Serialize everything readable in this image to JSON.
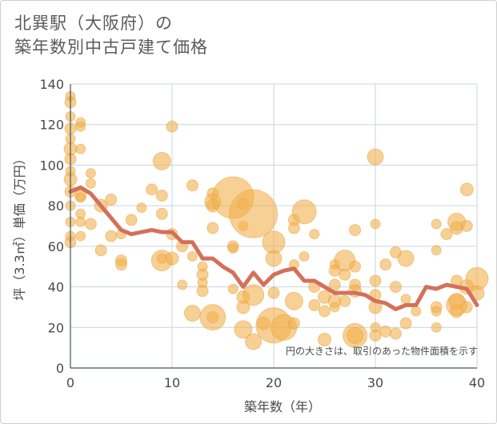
{
  "title": {
    "line1": "北巽駅（大阪府）の",
    "line2": "築年数別中古戸建て価格"
  },
  "note": "円の大きさは、取引のあった物件面積を示す",
  "colors": {
    "bubble": "#f2b04e",
    "bubble_stroke": "#e9a23a",
    "line": "#d4705a",
    "grid": "#c8d6e2",
    "axis": "#3d5566"
  },
  "chart_data": {
    "type": "scatter",
    "xlabel": "築年数（年）",
    "ylabel": "坪（3.3㎡）単価（万円）",
    "xlim": [
      0,
      40
    ],
    "ylim": [
      0,
      140
    ],
    "x_ticks": [
      0,
      10,
      20,
      30,
      40
    ],
    "y_ticks": [
      0,
      20,
      40,
      60,
      80,
      100,
      120,
      140
    ],
    "grid": true,
    "bubbles": [
      {
        "x": 0,
        "y": 134,
        "s": 6
      },
      {
        "x": 0,
        "y": 131,
        "s": 7
      },
      {
        "x": 0,
        "y": 124,
        "s": 6
      },
      {
        "x": 0,
        "y": 118,
        "s": 7
      },
      {
        "x": 0,
        "y": 113,
        "s": 6
      },
      {
        "x": 0,
        "y": 108,
        "s": 8
      },
      {
        "x": 0,
        "y": 103,
        "s": 7
      },
      {
        "x": 0,
        "y": 97,
        "s": 6
      },
      {
        "x": 0,
        "y": 93,
        "s": 8
      },
      {
        "x": 0,
        "y": 87,
        "s": 7
      },
      {
        "x": 0,
        "y": 80,
        "s": 6
      },
      {
        "x": 0,
        "y": 72,
        "s": 6
      },
      {
        "x": 0,
        "y": 65,
        "s": 6
      },
      {
        "x": 0,
        "y": 62,
        "s": 7
      },
      {
        "x": 1,
        "y": 121,
        "s": 6
      },
      {
        "x": 1,
        "y": 119,
        "s": 6
      },
      {
        "x": 1,
        "y": 108,
        "s": 6
      },
      {
        "x": 1,
        "y": 85,
        "s": 7
      },
      {
        "x": 1,
        "y": 84,
        "s": 6
      },
      {
        "x": 1,
        "y": 76,
        "s": 6
      },
      {
        "x": 1,
        "y": 72,
        "s": 6
      },
      {
        "x": 1,
        "y": 65,
        "s": 6
      },
      {
        "x": 2,
        "y": 96,
        "s": 6
      },
      {
        "x": 2,
        "y": 91,
        "s": 6
      },
      {
        "x": 2,
        "y": 71,
        "s": 7
      },
      {
        "x": 3,
        "y": 80,
        "s": 8
      },
      {
        "x": 3,
        "y": 58,
        "s": 7
      },
      {
        "x": 4,
        "y": 83,
        "s": 7
      },
      {
        "x": 4,
        "y": 65,
        "s": 7
      },
      {
        "x": 5,
        "y": 53,
        "s": 7
      },
      {
        "x": 5,
        "y": 51,
        "s": 7
      },
      {
        "x": 5,
        "y": 66,
        "s": 6
      },
      {
        "x": 6,
        "y": 73,
        "s": 7
      },
      {
        "x": 7,
        "y": 79,
        "s": 6
      },
      {
        "x": 8,
        "y": 88,
        "s": 7
      },
      {
        "x": 9,
        "y": 102,
        "s": 11
      },
      {
        "x": 9,
        "y": 85,
        "s": 7
      },
      {
        "x": 9,
        "y": 76,
        "s": 7
      },
      {
        "x": 9,
        "y": 53,
        "s": 13
      },
      {
        "x": 9,
        "y": 54,
        "s": 6
      },
      {
        "x": 10,
        "y": 119,
        "s": 7
      },
      {
        "x": 10,
        "y": 54,
        "s": 8
      },
      {
        "x": 10,
        "y": 66,
        "s": 7
      },
      {
        "x": 11,
        "y": 60,
        "s": 7
      },
      {
        "x": 11,
        "y": 41,
        "s": 6
      },
      {
        "x": 12,
        "y": 90,
        "s": 7
      },
      {
        "x": 12,
        "y": 27,
        "s": 10
      },
      {
        "x": 12,
        "y": 55,
        "s": 6
      },
      {
        "x": 13,
        "y": 50,
        "s": 6
      },
      {
        "x": 13,
        "y": 46,
        "s": 7
      },
      {
        "x": 13,
        "y": 42,
        "s": 6
      },
      {
        "x": 13,
        "y": 38,
        "s": 7
      },
      {
        "x": 14,
        "y": 86,
        "s": 7
      },
      {
        "x": 14,
        "y": 82,
        "s": 10
      },
      {
        "x": 14,
        "y": 80,
        "s": 8
      },
      {
        "x": 14,
        "y": 69,
        "s": 7
      },
      {
        "x": 14,
        "y": 25,
        "s": 16
      },
      {
        "x": 14,
        "y": 25,
        "s": 7
      },
      {
        "x": 16,
        "y": 84,
        "s": 26
      },
      {
        "x": 16,
        "y": 60,
        "s": 7
      },
      {
        "x": 16,
        "y": 59,
        "s": 6
      },
      {
        "x": 16,
        "y": 39,
        "s": 6
      },
      {
        "x": 17,
        "y": 81,
        "s": 7
      },
      {
        "x": 17,
        "y": 70,
        "s": 6
      },
      {
        "x": 17,
        "y": 35,
        "s": 8
      },
      {
        "x": 17,
        "y": 30,
        "s": 8
      },
      {
        "x": 17,
        "y": 19,
        "s": 11
      },
      {
        "x": 18,
        "y": 76,
        "s": 30
      },
      {
        "x": 18,
        "y": 36,
        "s": 13
      },
      {
        "x": 18,
        "y": 13,
        "s": 10
      },
      {
        "x": 19,
        "y": 22,
        "s": 8
      },
      {
        "x": 20,
        "y": 62,
        "s": 14
      },
      {
        "x": 20,
        "y": 54,
        "s": 10
      },
      {
        "x": 20,
        "y": 37,
        "s": 7
      },
      {
        "x": 20,
        "y": 21,
        "s": 22
      },
      {
        "x": 21,
        "y": 20,
        "s": 16
      },
      {
        "x": 22,
        "y": 73,
        "s": 7
      },
      {
        "x": 22,
        "y": 69,
        "s": 7
      },
      {
        "x": 22,
        "y": 51,
        "s": 6
      },
      {
        "x": 22,
        "y": 33,
        "s": 11
      },
      {
        "x": 22,
        "y": 22,
        "s": 7
      },
      {
        "x": 23,
        "y": 77,
        "s": 15
      },
      {
        "x": 23,
        "y": 55,
        "s": 6
      },
      {
        "x": 24,
        "y": 66,
        "s": 6
      },
      {
        "x": 24,
        "y": 40,
        "s": 7
      },
      {
        "x": 24,
        "y": 31,
        "s": 7
      },
      {
        "x": 25,
        "y": 35,
        "s": 8
      },
      {
        "x": 25,
        "y": 14,
        "s": 8
      },
      {
        "x": 25,
        "y": 28,
        "s": 7
      },
      {
        "x": 26,
        "y": 51,
        "s": 6
      },
      {
        "x": 26,
        "y": 48,
        "s": 7
      },
      {
        "x": 26,
        "y": 41,
        "s": 7
      },
      {
        "x": 26,
        "y": 33,
        "s": 8
      },
      {
        "x": 26,
        "y": 30,
        "s": 6
      },
      {
        "x": 27,
        "y": 53,
        "s": 13
      },
      {
        "x": 27,
        "y": 46,
        "s": 7
      },
      {
        "x": 27,
        "y": 33,
        "s": 7
      },
      {
        "x": 28,
        "y": 68,
        "s": 7
      },
      {
        "x": 28,
        "y": 50,
        "s": 7
      },
      {
        "x": 28,
        "y": 41,
        "s": 7
      },
      {
        "x": 28,
        "y": 38,
        "s": 8
      },
      {
        "x": 28,
        "y": 16,
        "s": 15
      },
      {
        "x": 28,
        "y": 16,
        "s": 10
      },
      {
        "x": 30,
        "y": 104,
        "s": 10
      },
      {
        "x": 30,
        "y": 71,
        "s": 6
      },
      {
        "x": 30,
        "y": 43,
        "s": 7
      },
      {
        "x": 30,
        "y": 36,
        "s": 7
      },
      {
        "x": 30,
        "y": 30,
        "s": 8
      },
      {
        "x": 30,
        "y": 20,
        "s": 6
      },
      {
        "x": 30,
        "y": 16,
        "s": 7
      },
      {
        "x": 31,
        "y": 51,
        "s": 7
      },
      {
        "x": 31,
        "y": 18,
        "s": 7
      },
      {
        "x": 32,
        "y": 57,
        "s": 7
      },
      {
        "x": 32,
        "y": 40,
        "s": 7
      },
      {
        "x": 32,
        "y": 17,
        "s": 7
      },
      {
        "x": 33,
        "y": 54,
        "s": 10
      },
      {
        "x": 33,
        "y": 34,
        "s": 6
      },
      {
        "x": 33,
        "y": 22,
        "s": 7
      },
      {
        "x": 34,
        "y": 28,
        "s": 6
      },
      {
        "x": 36,
        "y": 71,
        "s": 6
      },
      {
        "x": 36,
        "y": 58,
        "s": 6
      },
      {
        "x": 36,
        "y": 30,
        "s": 7
      },
      {
        "x": 36,
        "y": 28,
        "s": 6
      },
      {
        "x": 36,
        "y": 20,
        "s": 6
      },
      {
        "x": 37,
        "y": 66,
        "s": 7
      },
      {
        "x": 38,
        "y": 72,
        "s": 11
      },
      {
        "x": 38,
        "y": 69,
        "s": 8
      },
      {
        "x": 38,
        "y": 43,
        "s": 7
      },
      {
        "x": 38,
        "y": 33,
        "s": 10
      },
      {
        "x": 38,
        "y": 31,
        "s": 13
      },
      {
        "x": 38,
        "y": 28,
        "s": 8
      },
      {
        "x": 39,
        "y": 88,
        "s": 8
      },
      {
        "x": 39,
        "y": 70,
        "s": 7
      },
      {
        "x": 39,
        "y": 40,
        "s": 9
      },
      {
        "x": 39,
        "y": 30,
        "s": 7
      },
      {
        "x": 40,
        "y": 44,
        "s": 14
      },
      {
        "x": 40,
        "y": 37,
        "s": 9
      }
    ],
    "trend": {
      "x": [
        0,
        1,
        2,
        3,
        4,
        5,
        6,
        7,
        8,
        9,
        10,
        11,
        12,
        13,
        14,
        15,
        16,
        17,
        18,
        19,
        20,
        21,
        22,
        23,
        24,
        25,
        26,
        27,
        28,
        29,
        30,
        31,
        32,
        33,
        34,
        35,
        36,
        37,
        38,
        39,
        40
      ],
      "y": [
        87,
        89,
        86,
        80,
        74,
        68,
        66,
        67,
        68,
        67,
        67,
        62,
        62,
        54,
        54,
        50,
        47,
        40,
        47,
        41,
        46,
        48,
        49,
        43,
        43,
        40,
        37,
        37,
        37,
        36,
        33,
        32,
        29,
        31,
        31,
        40,
        39,
        41,
        40,
        39,
        31
      ]
    }
  }
}
